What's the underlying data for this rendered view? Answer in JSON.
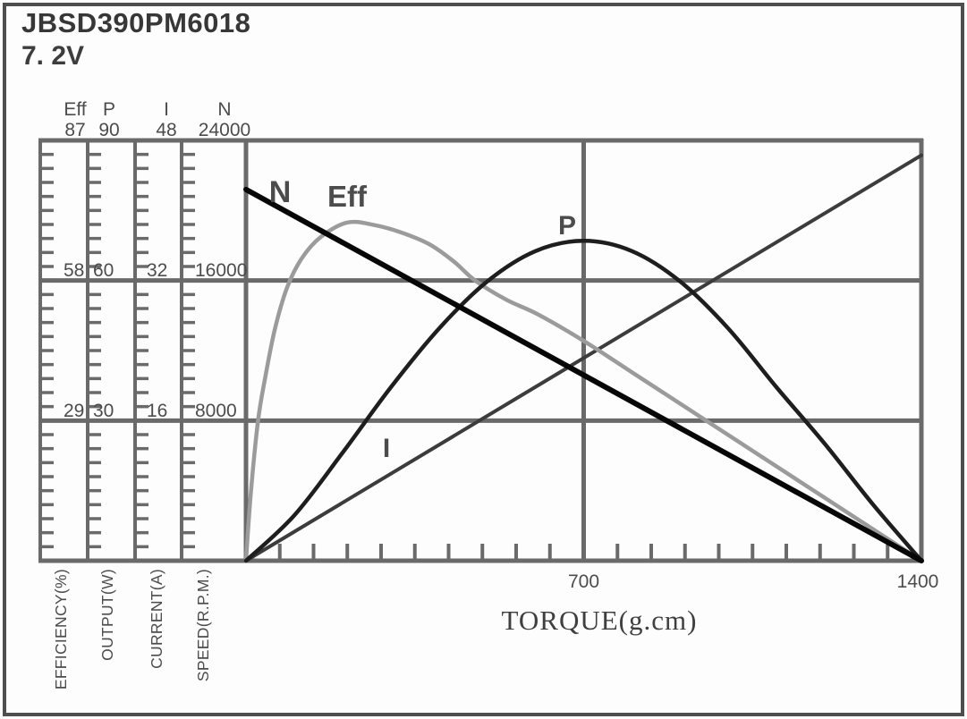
{
  "title": "JBSD390PM6018",
  "voltage": "7. 2V",
  "colors": {
    "grid": "#6a6a6a",
    "text": "#4c4c4c"
  },
  "chart_data": {
    "type": "line",
    "title": "JBSD390PM6018",
    "subtitle": "7. 2V",
    "xlabel": "TORQUE(g.cm)",
    "x_range": [
      0,
      1400
    ],
    "x_tick_labels": [
      700,
      1400
    ],
    "x_minor_tick_step": 70,
    "grid": "on",
    "legend_position": "on-curve",
    "axes": [
      {
        "id": "eff",
        "header": "Eff",
        "title": "EFFICIENCY(%)",
        "range": [
          0,
          87
        ],
        "tick_values": [
          87,
          58,
          29
        ]
      },
      {
        "id": "p",
        "header": "P",
        "title": "OUTPUT(W)",
        "range": [
          0,
          90
        ],
        "tick_values": [
          90,
          60,
          30
        ]
      },
      {
        "id": "i",
        "header": "I",
        "title": "CURRENT(A)",
        "range": [
          0,
          48
        ],
        "tick_values": [
          48,
          32,
          16
        ]
      },
      {
        "id": "n",
        "header": "N",
        "title": "SPEED(R.P.M.)",
        "range": [
          0,
          24000
        ],
        "tick_values": [
          24000,
          16000,
          8000
        ]
      }
    ],
    "series": [
      {
        "name": "N",
        "axis": "n",
        "color": "#070707",
        "unit": "R.P.M.",
        "points": [
          [
            0,
            21200
          ],
          [
            1400,
            0
          ]
        ]
      },
      {
        "name": "Eff",
        "axis": "eff",
        "color": "#9b9b9b",
        "unit": "%",
        "points": [
          [
            0,
            0
          ],
          [
            10,
            14
          ],
          [
            25,
            29
          ],
          [
            40,
            38
          ],
          [
            60,
            48
          ],
          [
            85,
            56.5
          ],
          [
            115,
            62.5
          ],
          [
            155,
            67
          ],
          [
            210,
            70
          ],
          [
            265,
            69.5
          ],
          [
            320,
            68
          ],
          [
            380,
            65.5
          ],
          [
            430,
            62
          ],
          [
            475,
            58
          ],
          [
            540,
            54
          ],
          [
            605,
            51
          ],
          [
            700,
            45.5
          ],
          [
            800,
            39
          ],
          [
            900,
            32.5
          ],
          [
            1000,
            26
          ],
          [
            1100,
            19.5
          ],
          [
            1200,
            13
          ],
          [
            1300,
            6.5
          ],
          [
            1400,
            0
          ]
        ]
      },
      {
        "name": "P",
        "axis": "p",
        "color": "#1e1e1e",
        "unit": "W",
        "points": [
          [
            0,
            0
          ],
          [
            100,
            9.7
          ],
          [
            200,
            23.1
          ],
          [
            300,
            37.1
          ],
          [
            400,
            49.7
          ],
          [
            500,
            59.8
          ],
          [
            600,
            66.3
          ],
          [
            700,
            68.5
          ],
          [
            800,
            66.3
          ],
          [
            900,
            59.8
          ],
          [
            1000,
            49.7
          ],
          [
            1100,
            37.1
          ],
          [
            1200,
            25
          ],
          [
            1300,
            12
          ],
          [
            1400,
            0
          ]
        ]
      },
      {
        "name": "I",
        "axis": "i",
        "color": "#3c3c3c",
        "unit": "A",
        "points": [
          [
            0,
            0
          ],
          [
            1400,
            46.3
          ]
        ]
      }
    ]
  }
}
